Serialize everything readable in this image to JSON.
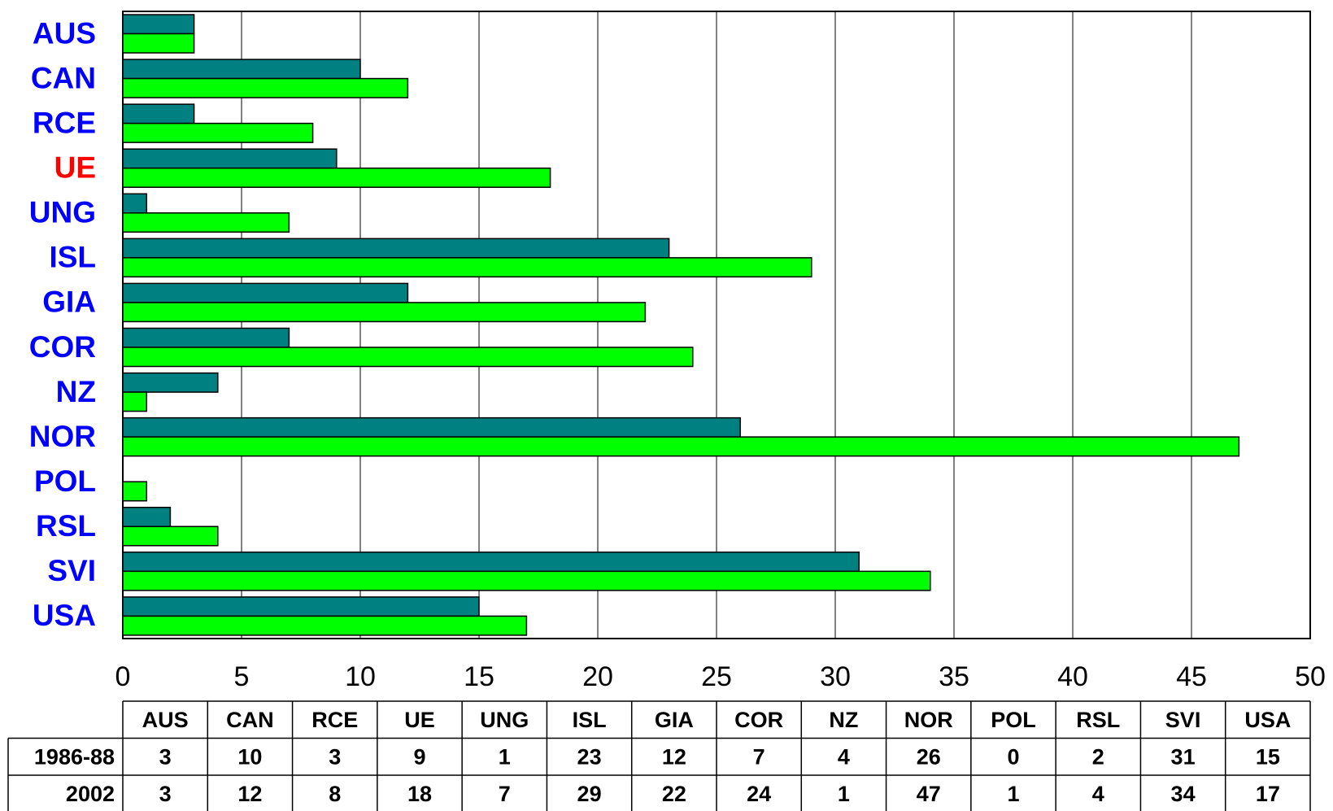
{
  "chart_data": {
    "type": "bar",
    "orientation": "horizontal",
    "categories": [
      "AUS",
      "CAN",
      "RCE",
      "UE",
      "UNG",
      "ISL",
      "GIA",
      "COR",
      "NZ",
      "NOR",
      "POL",
      "RSL",
      "SVI",
      "USA"
    ],
    "category_colors": [
      "#0000ff",
      "#0000ff",
      "#0000ff",
      "#ff0000",
      "#0000ff",
      "#0000ff",
      "#0000ff",
      "#0000ff",
      "#0000ff",
      "#0000ff",
      "#0000ff",
      "#0000ff",
      "#0000ff",
      "#0000ff"
    ],
    "series": [
      {
        "name": "1986-88",
        "color": "#008080",
        "values": [
          3,
          10,
          3,
          9,
          1,
          23,
          12,
          7,
          4,
          26,
          0,
          2,
          31,
          15
        ]
      },
      {
        "name": "2002",
        "color": "#00ff00",
        "values": [
          3,
          12,
          8,
          18,
          7,
          29,
          22,
          24,
          1,
          47,
          1,
          4,
          34,
          17
        ]
      }
    ],
    "xlim": [
      0,
      50
    ],
    "xticks": [
      0,
      5,
      10,
      15,
      20,
      25,
      30,
      35,
      40,
      45,
      50
    ],
    "grid": true,
    "data_table": true
  }
}
